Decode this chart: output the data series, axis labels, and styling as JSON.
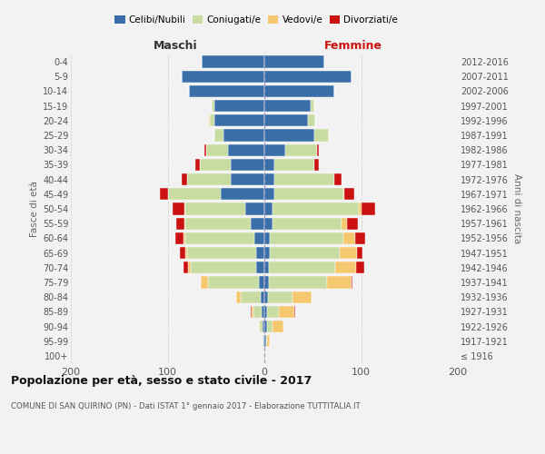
{
  "age_groups": [
    "100+",
    "95-99",
    "90-94",
    "85-89",
    "80-84",
    "75-79",
    "70-74",
    "65-69",
    "60-64",
    "55-59",
    "50-54",
    "45-49",
    "40-44",
    "35-39",
    "30-34",
    "25-29",
    "20-24",
    "15-19",
    "10-14",
    "5-9",
    "0-4"
  ],
  "birth_years": [
    "≤ 1916",
    "1917-1921",
    "1922-1926",
    "1927-1931",
    "1932-1936",
    "1937-1941",
    "1942-1946",
    "1947-1951",
    "1952-1956",
    "1957-1961",
    "1962-1966",
    "1967-1971",
    "1972-1976",
    "1977-1981",
    "1982-1986",
    "1987-1991",
    "1992-1996",
    "1997-2001",
    "2002-2006",
    "2007-2011",
    "2012-2016"
  ],
  "male": {
    "celibe": [
      0,
      1,
      2,
      3,
      4,
      6,
      8,
      8,
      10,
      14,
      20,
      45,
      35,
      35,
      38,
      42,
      52,
      52,
      78,
      85,
      65
    ],
    "coniugato": [
      0,
      1,
      3,
      8,
      20,
      52,
      68,
      72,
      72,
      68,
      62,
      55,
      45,
      32,
      22,
      10,
      4,
      2,
      0,
      0,
      0
    ],
    "vedovo": [
      0,
      0,
      1,
      2,
      5,
      8,
      3,
      2,
      2,
      1,
      1,
      0,
      0,
      0,
      0,
      0,
      1,
      0,
      0,
      0,
      0
    ],
    "divorziato": [
      0,
      0,
      0,
      1,
      0,
      0,
      5,
      5,
      8,
      8,
      12,
      8,
      5,
      4,
      2,
      0,
      0,
      0,
      0,
      0,
      0
    ]
  },
  "female": {
    "nubile": [
      0,
      2,
      3,
      3,
      4,
      5,
      5,
      6,
      6,
      8,
      8,
      10,
      10,
      10,
      22,
      52,
      45,
      48,
      72,
      90,
      62
    ],
    "coniugata": [
      0,
      1,
      5,
      12,
      25,
      60,
      68,
      72,
      76,
      72,
      90,
      72,
      62,
      42,
      32,
      15,
      8,
      4,
      0,
      0,
      0
    ],
    "vedova": [
      1,
      3,
      12,
      16,
      20,
      25,
      22,
      18,
      12,
      5,
      2,
      1,
      0,
      0,
      0,
      0,
      0,
      0,
      0,
      0,
      0
    ],
    "divorziata": [
      0,
      0,
      0,
      1,
      0,
      1,
      8,
      5,
      10,
      12,
      15,
      10,
      8,
      4,
      2,
      0,
      0,
      0,
      0,
      0,
      0
    ]
  },
  "colors": {
    "celibe": "#3a6ea8",
    "coniugato": "#c8dba0",
    "vedovo": "#f5c870",
    "divorziato": "#cc1111"
  },
  "xlim": 200,
  "title": "Popolazione per età, sesso e stato civile - 2017",
  "subtitle": "COMUNE DI SAN QUIRINO (PN) - Dati ISTAT 1° gennaio 2017 - Elaborazione TUTTITALIA.IT",
  "ylabel_left": "Fasce di età",
  "ylabel_right": "Anni di nascita",
  "xlabel_left": "Maschi",
  "xlabel_right": "Femmine",
  "background_color": "#f2f2f2",
  "legend_labels": [
    "Celibi/Nubili",
    "Coniugati/e",
    "Vedovi/e",
    "Divorziati/e"
  ]
}
